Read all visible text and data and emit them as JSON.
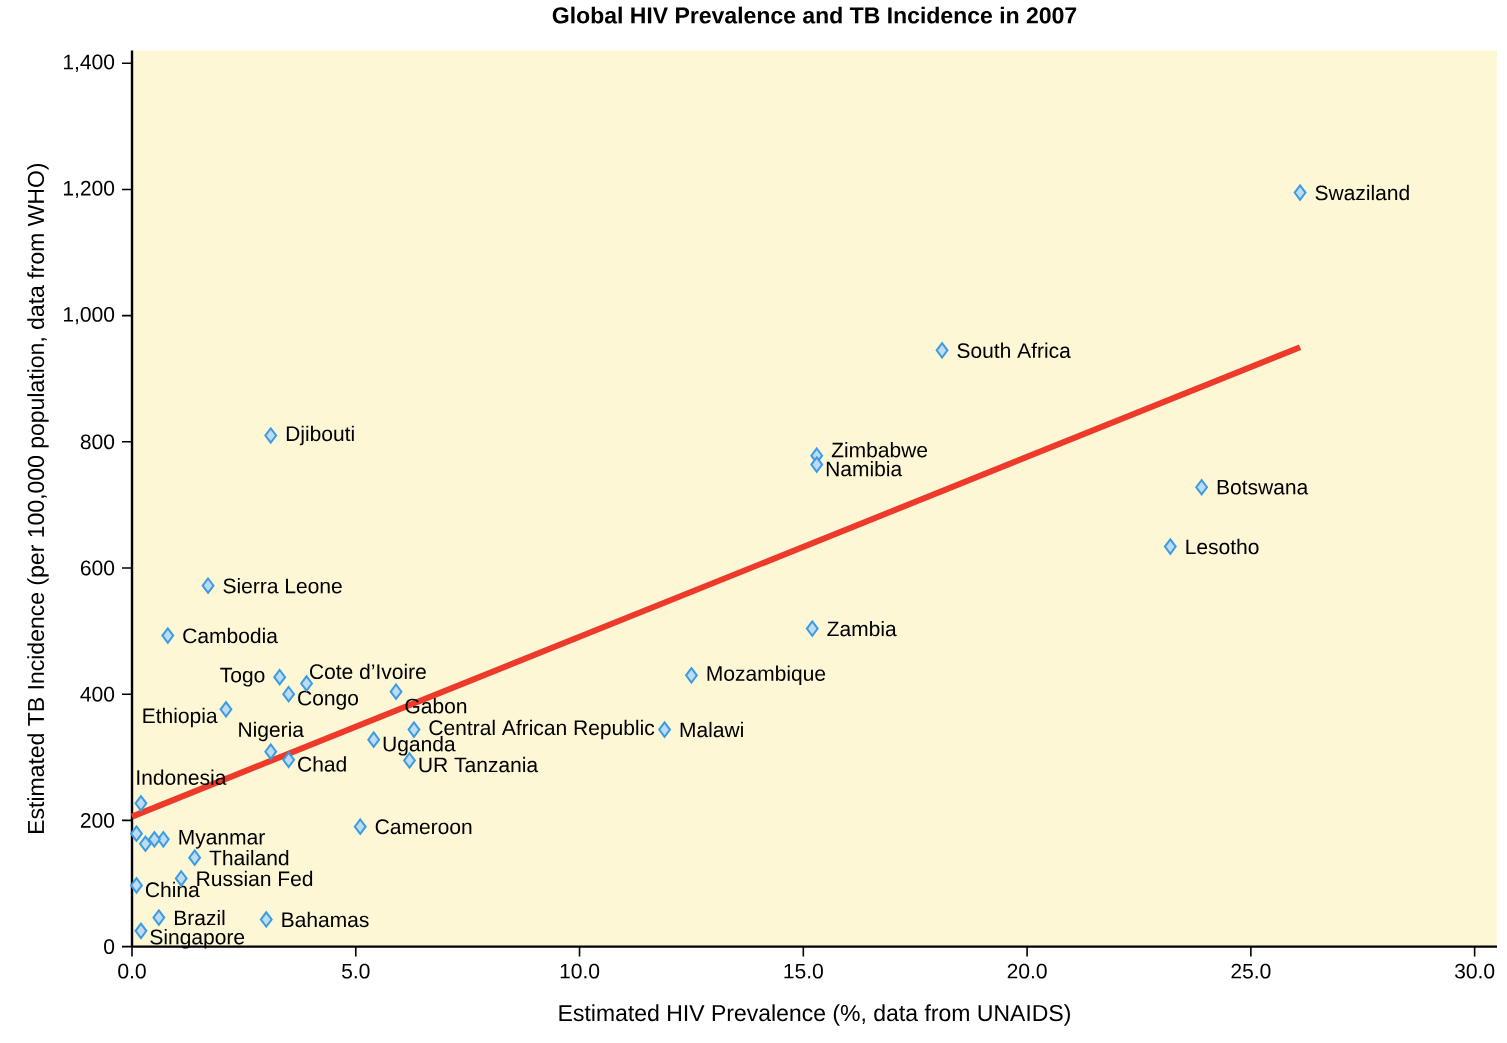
{
  "chart_data": {
    "type": "scatter",
    "title": "Global HIV Prevalence and TB Incidence in 2007",
    "xlabel": "Estimated HIV Prevalence (%, data from UNAIDS)",
    "ylabel": "Estimated TB Incidence (per 100,000 population, data from WHO)",
    "xlim": [
      0,
      30.5
    ],
    "ylim": [
      0,
      1420
    ],
    "xticks": [
      {
        "value": 0,
        "label": "0.0"
      },
      {
        "value": 5,
        "label": "5.0"
      },
      {
        "value": 10,
        "label": "10.0"
      },
      {
        "value": 15,
        "label": "15.0"
      },
      {
        "value": 20,
        "label": "20.0"
      },
      {
        "value": 25,
        "label": "25.0"
      },
      {
        "value": 30,
        "label": "30.0"
      }
    ],
    "yticks": [
      0,
      {
        "value": 200,
        "label": "200"
      },
      {
        "value": 400,
        "label": "400"
      },
      {
        "value": 600,
        "label": "600"
      },
      {
        "value": 800,
        "label": "800"
      },
      {
        "value": 1000,
        "label": "1,000"
      },
      {
        "value": 1200,
        "label": "1,200"
      },
      {
        "value": 1400,
        "label": "1,400"
      }
    ],
    "grid": false,
    "series": [
      {
        "color": "#3d9be0",
        "marker": "diamond",
        "x": [
          26.1,
          18.1,
          3.1,
          15.3,
          15.3,
          23.9,
          23.2,
          1.7,
          15.2,
          0.8,
          12.5,
          3.3,
          3.9,
          3.5,
          5.9,
          2.1,
          6.3,
          11.9,
          5.4,
          3.1,
          3.5,
          6.2,
          0.2,
          5.1,
          0.7,
          1.4,
          1.1,
          0.1,
          0.6,
          3.0,
          0.2,
          0.1,
          0.3,
          0.5
        ],
        "values": [
          1195,
          945,
          810,
          778,
          764,
          728,
          634,
          572,
          504,
          493,
          430,
          427,
          417,
          400,
          404,
          376,
          344,
          344,
          328,
          309,
          296,
          295,
          227,
          190,
          170,
          141,
          108,
          97,
          46,
          43,
          25,
          179,
          163,
          170
        ]
      },
      {
        "type": "line",
        "color": "#ee3a2a",
        "marker": "none",
        "x": [
          0,
          26.1
        ],
        "values": [
          206,
          950
        ]
      }
    ],
    "annotations": [
      {
        "text": "Swaziland",
        "x": 26.1,
        "y": 1195
      },
      {
        "text": "South Africa",
        "x": 18.1,
        "y": 945
      },
      {
        "text": "Djibouti",
        "x": 3.1,
        "y": 810
      },
      {
        "text": "Zimbabwe",
        "x": 15.3,
        "y": 778
      },
      {
        "text": "Namibia",
        "x": 15.3,
        "y": 764
      },
      {
        "text": "Botswana",
        "x": 23.9,
        "y": 728
      },
      {
        "text": "Lesotho",
        "x": 23.2,
        "y": 634
      },
      {
        "text": "Sierra Leone",
        "x": 1.7,
        "y": 572
      },
      {
        "text": "Zambia",
        "x": 15.2,
        "y": 504
      },
      {
        "text": "Cambodia",
        "x": 0.8,
        "y": 493
      },
      {
        "text": "Mozambique",
        "x": 12.5,
        "y": 430
      },
      {
        "text": "Togo",
        "x": 3.3,
        "y": 427
      },
      {
        "text": "Cote d’Ivoire",
        "x": 3.9,
        "y": 417
      },
      {
        "text": "Congo",
        "x": 3.5,
        "y": 400
      },
      {
        "text": "Gabon",
        "x": 5.9,
        "y": 404
      },
      {
        "text": "Ethiopia",
        "x": 2.1,
        "y": 376
      },
      {
        "text": "Central African Republic",
        "x": 6.3,
        "y": 344
      },
      {
        "text": "Malawi",
        "x": 11.9,
        "y": 344
      },
      {
        "text": "Uganda",
        "x": 5.4,
        "y": 328
      },
      {
        "text": "Nigeria",
        "x": 3.1,
        "y": 309
      },
      {
        "text": "Chad",
        "x": 3.5,
        "y": 296
      },
      {
        "text": "UR Tanzania",
        "x": 6.2,
        "y": 295
      },
      {
        "text": "Indonesia",
        "x": 0.2,
        "y": 227
      },
      {
        "text": "Cameroon",
        "x": 5.1,
        "y": 190
      },
      {
        "text": "Myanmar",
        "x": 0.7,
        "y": 170
      },
      {
        "text": "Thailand",
        "x": 1.4,
        "y": 141
      },
      {
        "text": "Russian Fed",
        "x": 1.1,
        "y": 108
      },
      {
        "text": "China",
        "x": 0.1,
        "y": 97
      },
      {
        "text": "Brazil",
        "x": 0.6,
        "y": 46
      },
      {
        "text": "Bahamas",
        "x": 3.0,
        "y": 43
      },
      {
        "text": "Singapore",
        "x": 0.2,
        "y": 25
      }
    ]
  }
}
